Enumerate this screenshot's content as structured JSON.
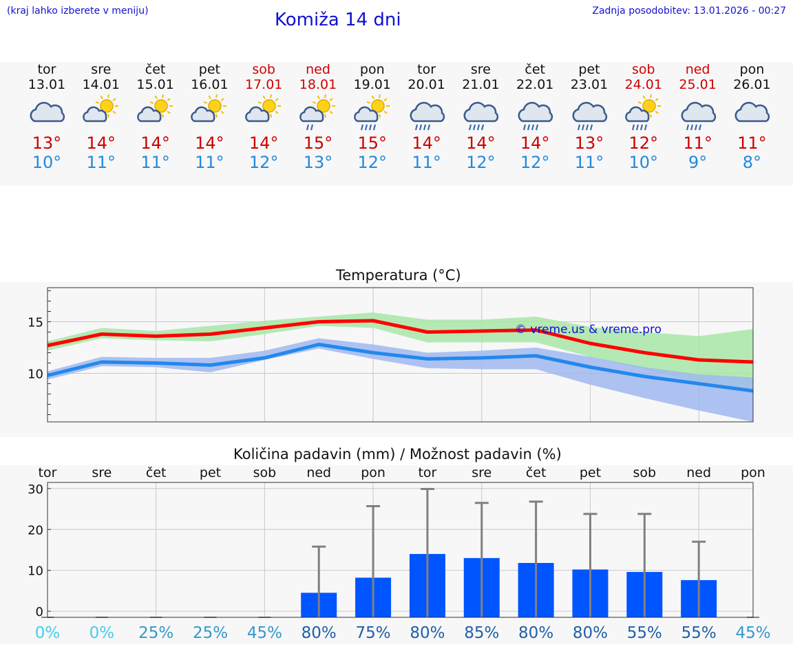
{
  "header": {
    "hint": "(kraj lahko izberete v meniju)",
    "title": "Komiža 14 dni",
    "updated": "Zadnja posodobitev: 13.01.2026 - 00:27"
  },
  "days": [
    {
      "name": "tor",
      "date": "13.01",
      "weekend": false,
      "icon": "cloudy-icon",
      "max": "13°",
      "min": "10°"
    },
    {
      "name": "sre",
      "date": "14.01",
      "weekend": false,
      "icon": "partly-sunny-icon",
      "max": "14°",
      "min": "11°"
    },
    {
      "name": "čet",
      "date": "15.01",
      "weekend": false,
      "icon": "partly-sunny-icon",
      "max": "14°",
      "min": "11°"
    },
    {
      "name": "pet",
      "date": "16.01",
      "weekend": false,
      "icon": "partly-sunny-icon",
      "max": "14°",
      "min": "11°"
    },
    {
      "name": "sob",
      "date": "17.01",
      "weekend": true,
      "icon": "partly-sunny-icon",
      "max": "14°",
      "min": "12°"
    },
    {
      "name": "ned",
      "date": "18.01",
      "weekend": true,
      "icon": "sun-shower-light-icon",
      "max": "15°",
      "min": "13°"
    },
    {
      "name": "pon",
      "date": "19.01",
      "weekend": false,
      "icon": "sun-shower-icon",
      "max": "15°",
      "min": "12°"
    },
    {
      "name": "tor",
      "date": "20.01",
      "weekend": false,
      "icon": "rain-cloud-icon",
      "max": "14°",
      "min": "11°"
    },
    {
      "name": "sre",
      "date": "21.01",
      "weekend": false,
      "icon": "rain-cloud-icon",
      "max": "14°",
      "min": "12°"
    },
    {
      "name": "čet",
      "date": "22.01",
      "weekend": false,
      "icon": "rain-cloud-icon",
      "max": "14°",
      "min": "12°"
    },
    {
      "name": "pet",
      "date": "23.01",
      "weekend": false,
      "icon": "rain-cloud-icon",
      "max": "13°",
      "min": "11°"
    },
    {
      "name": "sob",
      "date": "24.01",
      "weekend": true,
      "icon": "sun-shower-icon",
      "max": "12°",
      "min": "10°"
    },
    {
      "name": "ned",
      "date": "25.01",
      "weekend": true,
      "icon": "rain-cloud-icon",
      "max": "11°",
      "min": "9°"
    },
    {
      "name": "pon",
      "date": "26.01",
      "weekend": false,
      "icon": "cloudy-icon",
      "max": "11°",
      "min": "8°"
    }
  ],
  "chart_data": [
    {
      "type": "line",
      "title": "Temperatura (°C)",
      "xlabel": "",
      "ylabel": "",
      "ylim": [
        5.3,
        18.3
      ],
      "yticks": [
        "10",
        "15"
      ],
      "x": [
        0,
        1,
        2,
        3,
        4,
        5,
        6,
        7,
        8,
        9,
        10,
        11,
        12,
        13
      ],
      "series": [
        {
          "name": "max",
          "color": "#ff0000",
          "values": [
            12.7,
            13.8,
            13.6,
            13.8,
            14.4,
            15.0,
            15.1,
            14.0,
            14.1,
            14.2,
            12.9,
            12.0,
            11.3,
            11.1
          ],
          "band_low": [
            12.2,
            13.4,
            13.2,
            13.1,
            13.8,
            14.6,
            14.4,
            13.0,
            13.0,
            13.0,
            11.6,
            10.4,
            9.1,
            8.2
          ],
          "band_high": [
            13.1,
            14.4,
            14.1,
            14.6,
            15.1,
            15.5,
            15.9,
            15.2,
            15.2,
            15.5,
            14.5,
            14.0,
            13.6,
            14.3
          ],
          "band_color": "#a8e6a8"
        },
        {
          "name": "min",
          "color": "#2288ee",
          "values": [
            9.8,
            11.1,
            11.0,
            10.8,
            11.5,
            12.8,
            12.0,
            11.4,
            11.5,
            11.7,
            10.6,
            9.7,
            9.0,
            8.3
          ],
          "band_low": [
            9.4,
            10.7,
            10.6,
            10.1,
            11.3,
            12.4,
            11.4,
            10.5,
            10.4,
            10.4,
            8.9,
            7.6,
            6.4,
            5.3
          ],
          "band_high": [
            10.2,
            11.6,
            11.5,
            11.5,
            12.2,
            13.4,
            12.8,
            12.0,
            12.2,
            12.5,
            11.6,
            10.6,
            9.9,
            9.6
          ],
          "band_color": "#a0b8f0"
        }
      ],
      "annotation": "© vreme.us & vreme.pro"
    },
    {
      "type": "bar",
      "title": "Količina padavin (mm) / Možnost padavin (%)",
      "categories": [
        "tor",
        "sre",
        "čet",
        "pet",
        "sob",
        "ned",
        "pon",
        "tor",
        "sre",
        "čet",
        "pet",
        "sob",
        "ned",
        "pon"
      ],
      "ylim": [
        -1.5,
        31.5
      ],
      "yticks": [
        "0",
        "10",
        "20",
        "30"
      ],
      "values": [
        0,
        0,
        0,
        0,
        0,
        4.5,
        8.2,
        14.0,
        13.0,
        11.8,
        10.2,
        9.6,
        7.6,
        0
      ],
      "error_max": [
        0,
        0,
        0,
        0,
        0,
        15.8,
        25.7,
        29.9,
        26.5,
        26.8,
        23.8,
        23.8,
        17.0,
        0
      ],
      "probability": [
        "0%",
        "0%",
        "25%",
        "25%",
        "45%",
        "80%",
        "75%",
        "80%",
        "85%",
        "80%",
        "80%",
        "55%",
        "55%",
        "45%"
      ],
      "probability_colors": [
        "#44ccee",
        "#44ccee",
        "#3399cc",
        "#3399cc",
        "#3399cc",
        "#1f5fa8",
        "#1f5fa8",
        "#1f5fa8",
        "#1f5fa8",
        "#1f5fa8",
        "#1f5fa8",
        "#1f5fa8",
        "#1f5fa8",
        "#3399cc"
      ],
      "bar_color": "#0055ff",
      "error_color": "#808080"
    }
  ]
}
